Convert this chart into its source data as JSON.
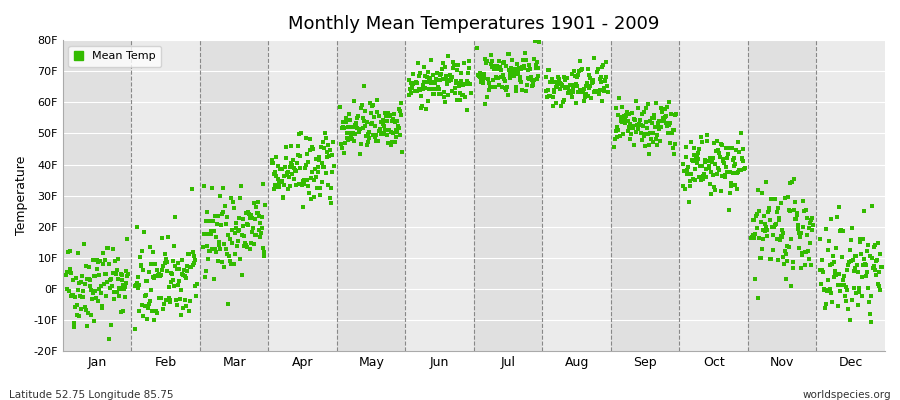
{
  "title": "Monthly Mean Temperatures 1901 - 2009",
  "ylabel": "Temperature",
  "subtitle_left": "Latitude 52.75 Longitude 85.75",
  "subtitle_right": "worldspecies.org",
  "legend_label": "Mean Temp",
  "dot_color": "#33bb00",
  "bg_light": "#ebebeb",
  "bg_dark": "#e0e0e0",
  "ylim": [
    -20,
    80
  ],
  "yticks": [
    -20,
    -10,
    0,
    10,
    20,
    30,
    40,
    50,
    60,
    70,
    80
  ],
  "ytick_labels": [
    "-20F",
    "-10F",
    "0F",
    "10F",
    "20F",
    "30F",
    "40F",
    "50F",
    "60F",
    "70F",
    "80F"
  ],
  "months": [
    "Jan",
    "Feb",
    "Mar",
    "Apr",
    "May",
    "Jun",
    "Jul",
    "Aug",
    "Sep",
    "Oct",
    "Nov",
    "Dec"
  ],
  "month_means": [
    2.0,
    2.5,
    18.0,
    38.0,
    53.0,
    66.0,
    69.5,
    65.0,
    52.0,
    39.0,
    18.0,
    6.0
  ],
  "month_stds": [
    7.0,
    7.5,
    7.0,
    5.5,
    4.0,
    3.5,
    3.5,
    3.5,
    4.0,
    5.0,
    7.0,
    8.0
  ],
  "n_years": 109,
  "year_start": 1901,
  "year_end": 2009
}
